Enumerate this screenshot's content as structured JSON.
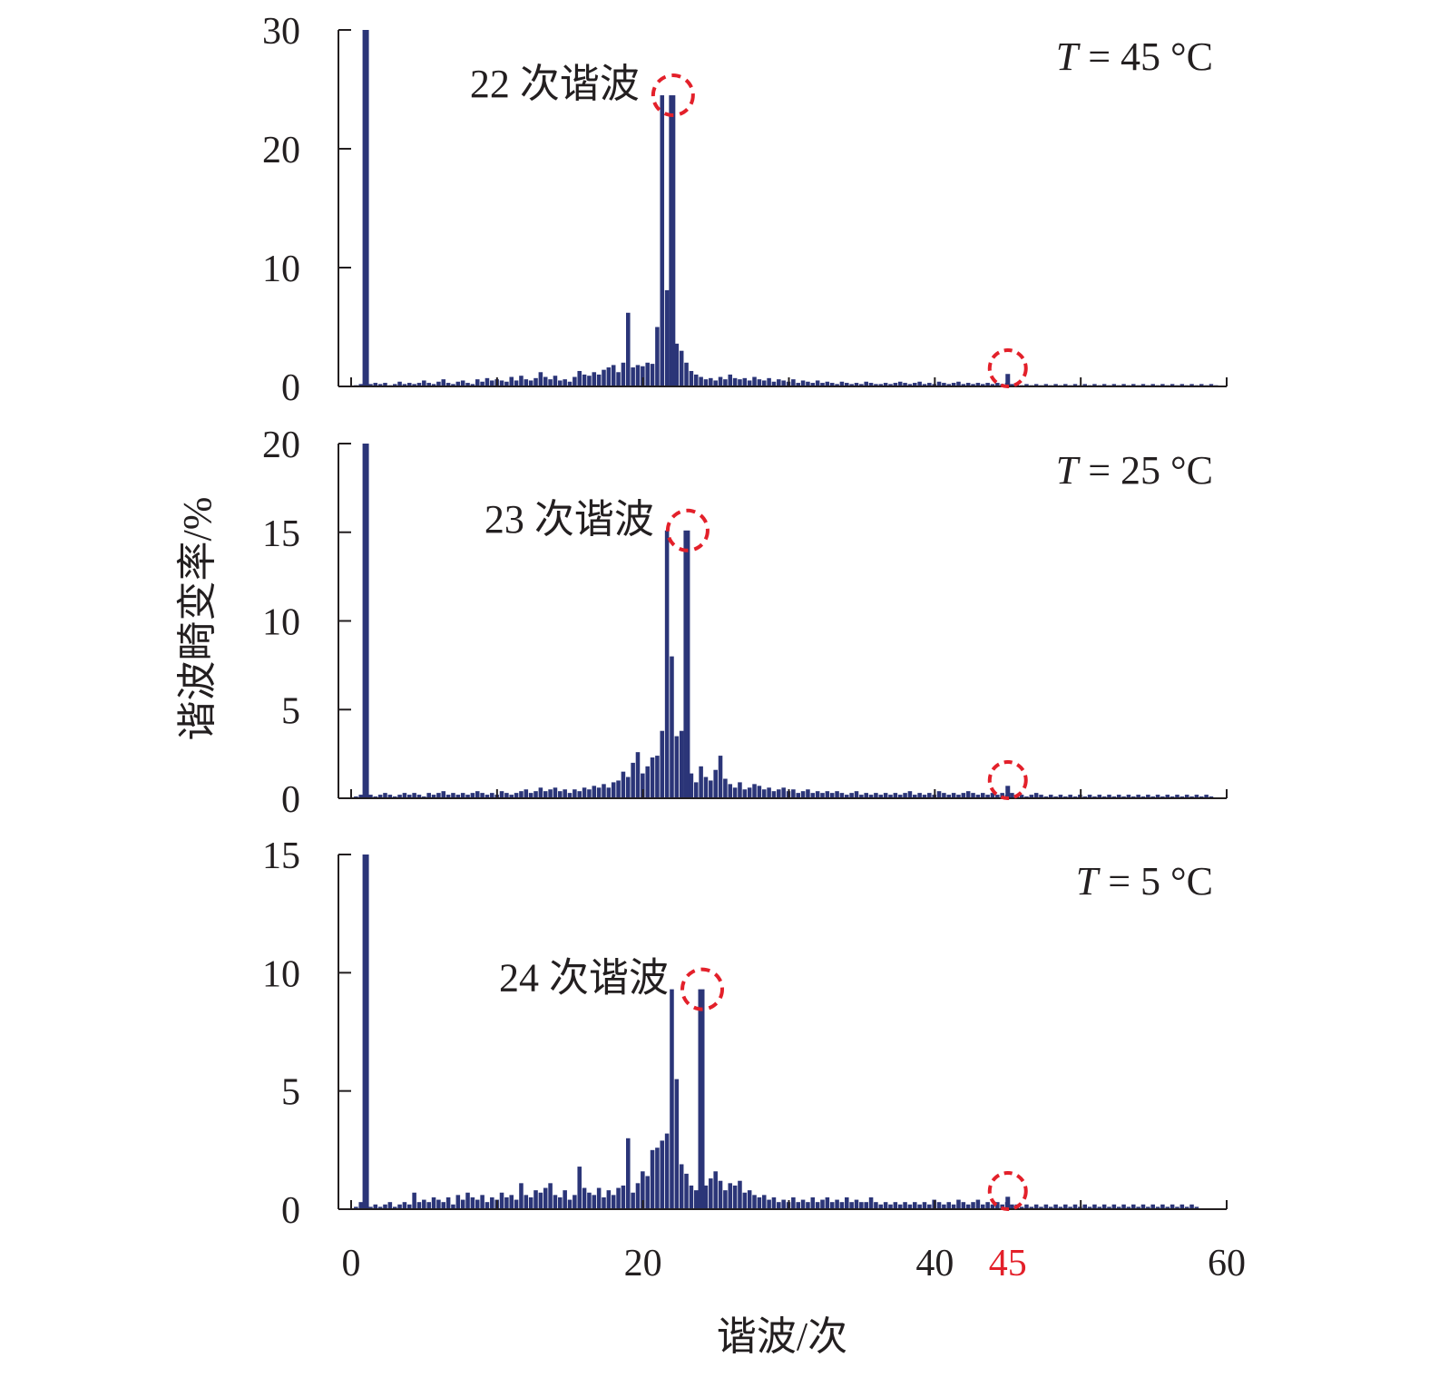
{
  "figure": {
    "ylabel": "谐波畸变率/%",
    "xlabel": "谐波/次",
    "bar_color": "#2b3578",
    "axis_color": "#231f20",
    "highlight_color": "#e3202a",
    "xlim": [
      0,
      60
    ],
    "x_ticks": [
      0,
      20,
      40,
      45,
      60
    ],
    "x_tick_labels": [
      "0",
      "20",
      "40",
      "45",
      "60"
    ],
    "highlight_x_tick": "45",
    "bar_spacing": 0.333
  },
  "chart_data": [
    {
      "type": "bar",
      "panel": "top",
      "temperature_label": {
        "italic": "T",
        "rest": " = 45 °C"
      },
      "annotation": "22 次谐波",
      "peak_x": 22,
      "peak_value": 24.5,
      "highlight_x": 45,
      "ylim": [
        0,
        30
      ],
      "y_ticks": [
        0,
        10,
        20,
        30
      ],
      "values": [
        0.1,
        0.2,
        0.3,
        0.2,
        0.3,
        0.2,
        0.3,
        0.1,
        0.2,
        0.4,
        0.2,
        0.3,
        0.2,
        0.3,
        0.5,
        0.3,
        0.2,
        0.4,
        0.6,
        0.3,
        0.2,
        0.4,
        0.5,
        0.3,
        0.2,
        0.6,
        0.4,
        0.7,
        0.5,
        0.6,
        0.5,
        0.4,
        0.8,
        0.5,
        0.9,
        0.6,
        0.5,
        0.7,
        1.2,
        0.8,
        0.6,
        0.9,
        0.5,
        0.6,
        0.4,
        0.8,
        1.3,
        1.0,
        0.9,
        1.2,
        1.0,
        1.4,
        1.6,
        1.8,
        1.2,
        2.0,
        6.2,
        1.6,
        1.8,
        1.7,
        2.0,
        1.9,
        5.0,
        24.5,
        8.1,
        4.6,
        3.6,
        3.0,
        2.0,
        1.3,
        1.0,
        0.8,
        0.6,
        0.7,
        0.5,
        0.8,
        0.6,
        1.0,
        0.7,
        0.6,
        0.7,
        0.5,
        0.8,
        0.6,
        0.5,
        0.7,
        0.4,
        0.6,
        0.5,
        0.4,
        0.6,
        0.3,
        0.5,
        0.4,
        0.3,
        0.5,
        0.3,
        0.4,
        0.3,
        0.2,
        0.4,
        0.3,
        0.2,
        0.3,
        0.2,
        0.4,
        0.3,
        0.2,
        0.2,
        0.3,
        0.2,
        0.3,
        0.4,
        0.3,
        0.2,
        0.3,
        0.4,
        0.2,
        0.3,
        0.2,
        0.4,
        0.3,
        0.2,
        0.3,
        0.4,
        0.2,
        0.3,
        0.2,
        0.3,
        0.2,
        0.3,
        0.2,
        0.3,
        0.2,
        0.3,
        0.2,
        0.3,
        0.1,
        0.2,
        0.1,
        0.2,
        0.1,
        0.2,
        0.1,
        0.2,
        0.1,
        0.2,
        0.1,
        0.2,
        0.1,
        0.2,
        0.1,
        0.2,
        0.1,
        0.2,
        0.1,
        0.2,
        0.1,
        0.2,
        0.1,
        0.2,
        0.1,
        0.2,
        0.1,
        0.2,
        0.1,
        0.2,
        0.1,
        0.2,
        0.1,
        0.2,
        0.1,
        0.2,
        0.1,
        0.2,
        0.1,
        0.2,
        0.1
      ]
    },
    {
      "type": "bar",
      "panel": "middle",
      "temperature_label": {
        "italic": "T",
        "rest": " = 25 °C"
      },
      "annotation": "23 次谐波",
      "peak_x": 23,
      "peak_value": 15.1,
      "highlight_x": 45,
      "ylim": [
        0,
        20
      ],
      "y_ticks": [
        0,
        5,
        10,
        15,
        20
      ],
      "values": [
        0.1,
        0.2,
        0.3,
        0.2,
        0.1,
        0.2,
        0.3,
        0.2,
        0.1,
        0.2,
        0.3,
        0.2,
        0.3,
        0.2,
        0.1,
        0.3,
        0.2,
        0.3,
        0.4,
        0.2,
        0.3,
        0.2,
        0.3,
        0.2,
        0.3,
        0.4,
        0.3,
        0.2,
        0.3,
        0.2,
        0.4,
        0.3,
        0.2,
        0.3,
        0.4,
        0.5,
        0.3,
        0.4,
        0.6,
        0.4,
        0.5,
        0.6,
        0.4,
        0.5,
        0.3,
        0.5,
        0.4,
        0.6,
        0.5,
        0.7,
        0.6,
        0.8,
        0.6,
        0.9,
        1.0,
        1.5,
        1.2,
        2.0,
        2.6,
        1.4,
        1.8,
        2.3,
        2.4,
        3.8,
        15.1,
        8.0,
        3.5,
        3.8,
        2.5,
        1.4,
        0.9,
        1.8,
        1.2,
        1.0,
        1.6,
        2.4,
        1.1,
        0.8,
        0.6,
        0.9,
        0.5,
        0.6,
        0.8,
        0.7,
        0.5,
        0.6,
        0.4,
        0.5,
        0.6,
        0.4,
        0.5,
        0.3,
        0.4,
        0.5,
        0.3,
        0.4,
        0.3,
        0.4,
        0.3,
        0.4,
        0.3,
        0.2,
        0.3,
        0.4,
        0.2,
        0.3,
        0.2,
        0.3,
        0.2,
        0.3,
        0.2,
        0.3,
        0.2,
        0.3,
        0.4,
        0.2,
        0.3,
        0.2,
        0.3,
        0.2,
        0.4,
        0.3,
        0.2,
        0.3,
        0.2,
        0.3,
        0.4,
        0.3,
        0.2,
        0.3,
        0.2,
        0.3,
        0.2,
        0.3,
        0.2,
        0.3,
        0.2,
        0.2,
        0.1,
        0.2,
        0.3,
        0.2,
        0.1,
        0.2,
        0.1,
        0.2,
        0.1,
        0.2,
        0.1,
        0.2,
        0.1,
        0.2,
        0.1,
        0.2,
        0.1,
        0.2,
        0.1,
        0.2,
        0.1,
        0.2,
        0.1,
        0.2,
        0.1,
        0.2,
        0.1,
        0.2,
        0.1,
        0.2,
        0.1,
        0.2,
        0.1,
        0.2,
        0.1,
        0.2,
        0.1,
        0.2,
        0.1
      ]
    },
    {
      "type": "bar",
      "panel": "bottom",
      "temperature_label": {
        "italic": "T",
        "rest": " = 5 °C"
      },
      "annotation": "24 次谐波",
      "peak_x": 24,
      "peak_value": 9.3,
      "highlight_x": 45,
      "ylim": [
        0,
        15
      ],
      "y_ticks": [
        0,
        5,
        10,
        15
      ],
      "values": [
        0.1,
        0.3,
        0.2,
        0.1,
        0.2,
        0.1,
        0.2,
        0.3,
        0.1,
        0.2,
        0.3,
        0.2,
        0.7,
        0.3,
        0.4,
        0.3,
        0.5,
        0.4,
        0.3,
        0.5,
        0.2,
        0.6,
        0.4,
        0.7,
        0.5,
        0.4,
        0.6,
        0.3,
        0.5,
        0.4,
        0.7,
        0.5,
        0.6,
        0.4,
        1.1,
        0.6,
        0.5,
        0.8,
        0.7,
        0.9,
        1.1,
        0.6,
        0.5,
        0.8,
        0.4,
        0.6,
        1.8,
        0.9,
        0.7,
        0.6,
        0.9,
        0.5,
        0.8,
        0.6,
        0.9,
        1.0,
        3.0,
        0.7,
        1.1,
        1.6,
        1.4,
        2.5,
        2.6,
        2.9,
        3.2,
        9.3,
        5.5,
        1.9,
        1.5,
        1.0,
        0.8,
        1.1,
        1.0,
        1.3,
        1.6,
        1.2,
        0.8,
        1.1,
        1.0,
        1.2,
        0.7,
        0.8,
        0.6,
        0.5,
        0.6,
        0.4,
        0.5,
        0.3,
        0.4,
        0.3,
        0.5,
        0.3,
        0.4,
        0.3,
        0.5,
        0.3,
        0.4,
        0.5,
        0.3,
        0.4,
        0.3,
        0.5,
        0.3,
        0.4,
        0.3,
        0.3,
        0.5,
        0.3,
        0.2,
        0.3,
        0.2,
        0.3,
        0.2,
        0.3,
        0.2,
        0.3,
        0.2,
        0.3,
        0.2,
        0.4,
        0.3,
        0.2,
        0.3,
        0.2,
        0.4,
        0.3,
        0.2,
        0.3,
        0.4,
        0.2,
        0.3,
        0.2,
        0.3,
        0.2,
        0.3,
        0.2,
        0.2,
        0.1,
        0.2,
        0.1,
        0.2,
        0.1,
        0.2,
        0.1,
        0.2,
        0.1,
        0.2,
        0.1,
        0.2,
        0.1,
        0.2,
        0.1,
        0.2,
        0.1,
        0.2,
        0.1,
        0.2,
        0.1,
        0.2,
        0.1,
        0.2,
        0.1,
        0.2,
        0.1,
        0.2,
        0.1,
        0.2,
        0.1,
        0.2,
        0.1,
        0.2,
        0.1,
        0.2,
        0.1
      ]
    }
  ]
}
